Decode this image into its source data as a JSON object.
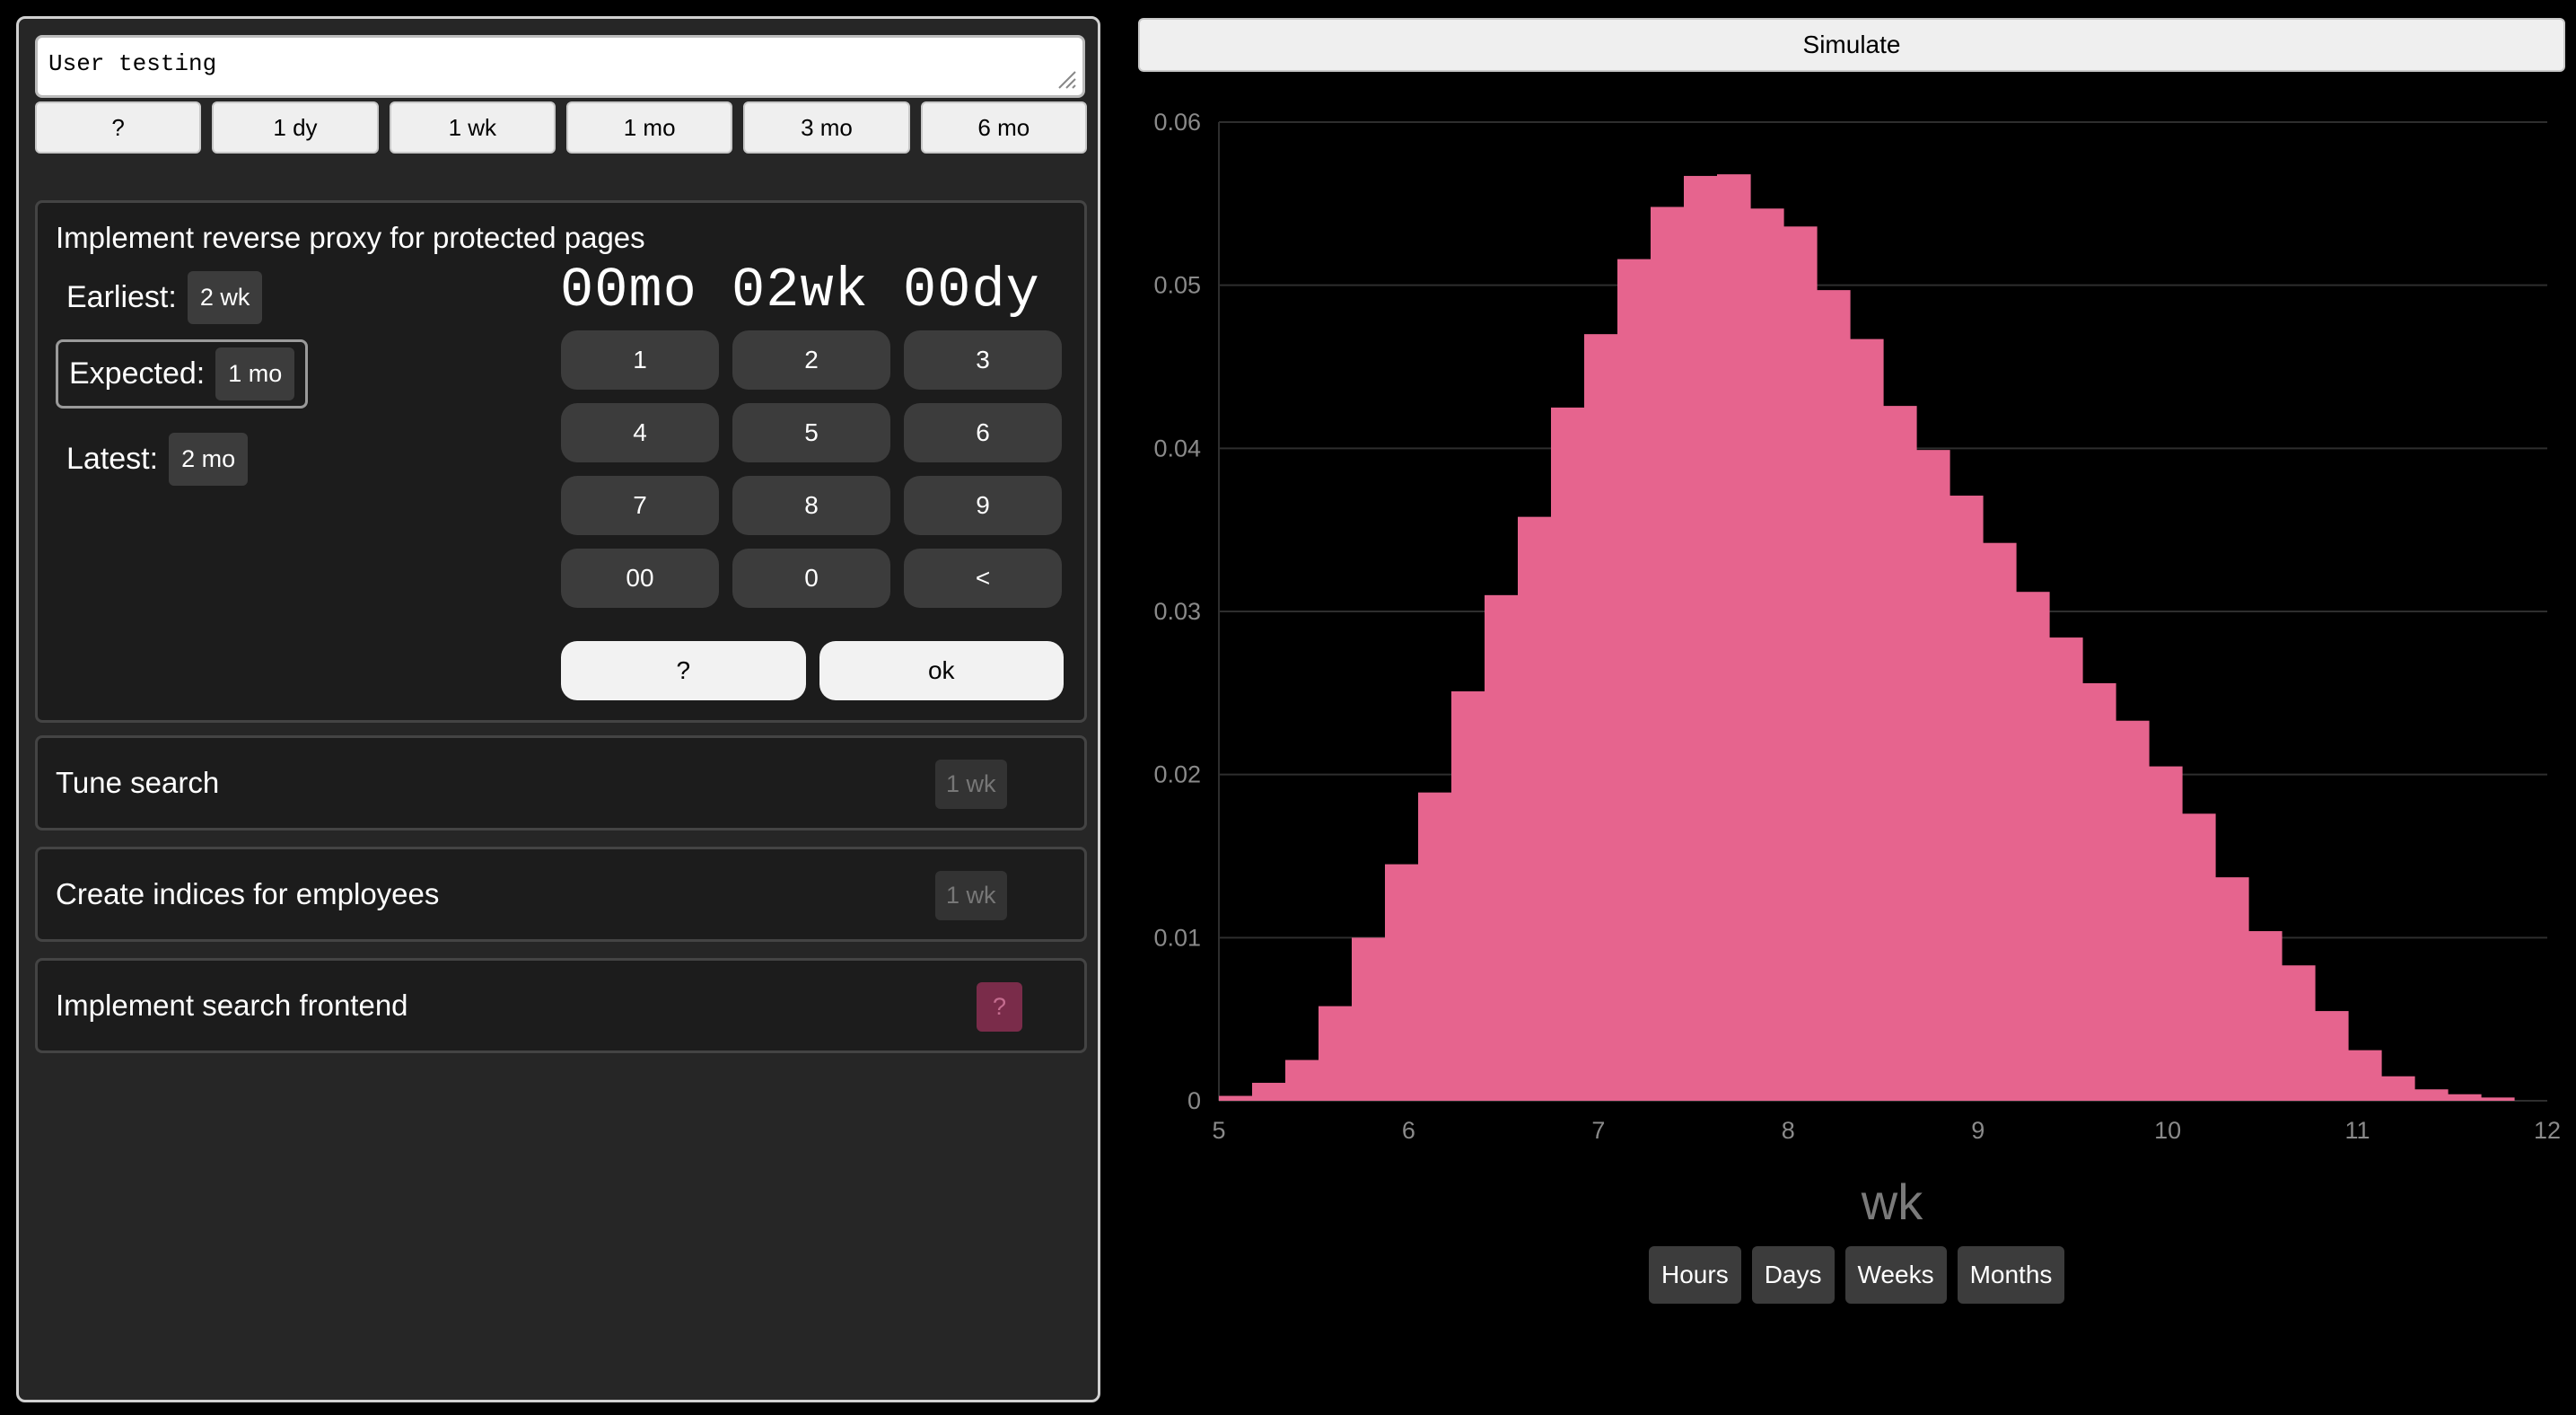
{
  "left": {
    "task_input": {
      "value": "User testing"
    },
    "quick_buttons": [
      "?",
      "1 dy",
      "1 wk",
      "1 mo",
      "3 mo",
      "6 mo"
    ],
    "active_task": {
      "title": "Implement reverse proxy for protected pages",
      "earliest": {
        "label": "Earliest:",
        "value": "2 wk"
      },
      "expected": {
        "label": "Expected:",
        "value": "1 mo"
      },
      "latest": {
        "label": "Latest:",
        "value": "2 mo"
      },
      "timer": "00mo 02wk 00dy",
      "keypad": [
        "1",
        "2",
        "3",
        "4",
        "5",
        "6",
        "7",
        "8",
        "9",
        "00",
        "0",
        "<"
      ],
      "unknown_label": "?",
      "ok_label": "ok"
    },
    "tasks": [
      {
        "title": "Tune search",
        "estimate": "1 wk"
      },
      {
        "title": "Create indices for employees",
        "estimate": "1 wk"
      },
      {
        "title": "Implement search frontend",
        "estimate": "?"
      }
    ]
  },
  "right": {
    "simulate_label": "Simulate",
    "unit_buttons": [
      "Hours",
      "Days",
      "Weeks",
      "Months"
    ]
  },
  "chart_data": {
    "type": "bar",
    "xlabel": "wk",
    "ylabel": "",
    "xlim": [
      5,
      12
    ],
    "ylim": [
      0,
      0.06
    ],
    "x_ticks": [
      "5",
      "6",
      "7",
      "8",
      "9",
      "10",
      "11",
      "12"
    ],
    "y_ticks": [
      "0",
      "0.01",
      "0.02",
      "0.03",
      "0.04",
      "0.05",
      "0.06"
    ],
    "grid": true,
    "bar_color": "#e6648e",
    "bin_width": 0.175,
    "bin_start": 5.0,
    "values": [
      0.0003,
      0.0011,
      0.0025,
      0.0058,
      0.01,
      0.0145,
      0.0189,
      0.0251,
      0.031,
      0.0358,
      0.0425,
      0.047,
      0.0516,
      0.0548,
      0.0567,
      0.0568,
      0.0547,
      0.0536,
      0.0497,
      0.0467,
      0.0426,
      0.0399,
      0.0371,
      0.0342,
      0.0312,
      0.0284,
      0.0256,
      0.0233,
      0.0205,
      0.0176,
      0.0137,
      0.0104,
      0.0083,
      0.0055,
      0.0031,
      0.0015,
      0.0007,
      0.0004,
      0.0002,
      0.0
    ]
  }
}
